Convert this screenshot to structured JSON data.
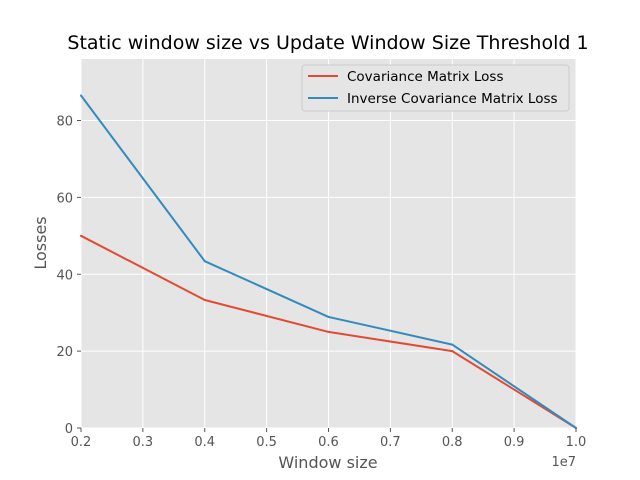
{
  "chart_data": {
    "type": "line",
    "title": "Static window size vs Update Window Size Threshold 1",
    "xlabel": "Window size",
    "ylabel": "Losses",
    "x_offset_label": "1e7",
    "x": [
      0.2,
      0.4,
      0.6,
      0.8,
      1.0
    ],
    "xlim": [
      0.2,
      1.0
    ],
    "ylim": [
      0,
      96
    ],
    "x_ticks": [
      0.2,
      0.3,
      0.4,
      0.5,
      0.6,
      0.7,
      0.8,
      0.9,
      1.0
    ],
    "x_tick_labels": [
      "0.2",
      "0.3",
      "0.4",
      "0.5",
      "0.6",
      "0.7",
      "0.8",
      "0.9",
      "1.0"
    ],
    "y_ticks": [
      0,
      20,
      40,
      60,
      80
    ],
    "y_tick_labels": [
      "0",
      "20",
      "40",
      "60",
      "80"
    ],
    "grid": true,
    "legend_position": "top-right",
    "series": [
      {
        "name": "Covariance Matrix Loss",
        "color": "#E24A33",
        "values": [
          50.0,
          33.3,
          25.0,
          20.0,
          0.0
        ]
      },
      {
        "name": "Inverse Covariance Matrix Loss",
        "color": "#348ABD",
        "values": [
          86.5,
          43.4,
          28.9,
          21.7,
          0.0
        ]
      }
    ]
  }
}
